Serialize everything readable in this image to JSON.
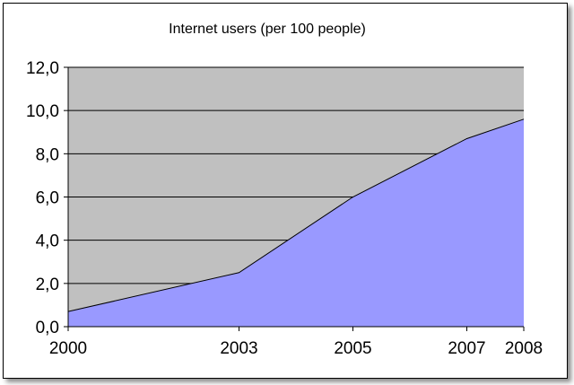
{
  "chart_data": {
    "type": "area",
    "title": "Internet users (per 100 people)",
    "xlabel": "",
    "ylabel": "",
    "categories": [
      "2000",
      "2003",
      "2005",
      "2007",
      "2008"
    ],
    "x": [
      2000,
      2003,
      2005,
      2007,
      2008
    ],
    "y": [
      0.7,
      2.5,
      6.0,
      8.7,
      9.6
    ],
    "ylim": [
      0,
      12
    ],
    "y_ticks": [
      "0,0",
      "2,0",
      "4,0",
      "6,0",
      "8,0",
      "10,0",
      "12,0"
    ],
    "x_ticks": [
      "2000",
      "2003",
      "2005",
      "2007",
      "2008"
    ],
    "grid": true,
    "legend": "none",
    "colors": {
      "plot_background": "#c0c0c0",
      "area_fill": "#9999ff",
      "gridline": "#000000"
    }
  }
}
